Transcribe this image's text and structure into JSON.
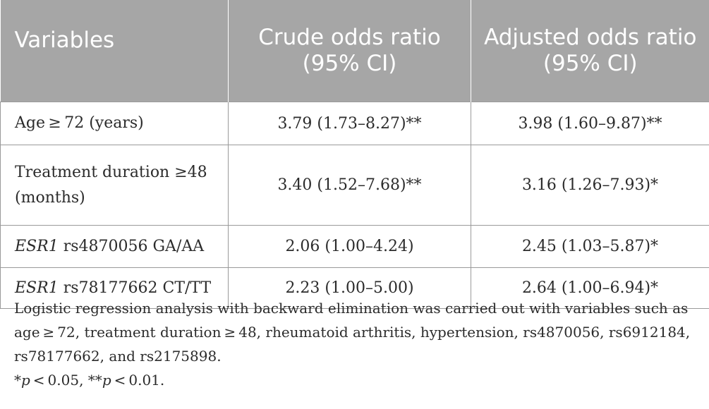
{
  "table": {
    "headers": [
      "Variables",
      "Crude odds ratio (95% CI)",
      "Adjusted odds ratio (95% CI)"
    ],
    "rows": [
      {
        "label": "Age ≥ 72 (years)",
        "crude": "3.79 (1.73–8.27)**",
        "adjusted": "3.98 (1.60–9.87)**"
      },
      {
        "label_line1": "Treatment duration ≥48",
        "label_line2": "(months)",
        "crude": "3.40 (1.52–7.68)**",
        "adjusted": "3.16 (1.26–7.93)*"
      },
      {
        "gene": "ESR1",
        "label": "rs4870056 GA/AA",
        "crude": "2.06 (1.00–4.24)",
        "adjusted": "2.45 (1.03–5.87)*"
      },
      {
        "gene": "ESR1",
        "label": "rs78177662 CT/TT",
        "crude": "2.23 (1.00–5.00)",
        "adjusted": "2.64 (1.00–6.94)*"
      }
    ]
  },
  "footnote": {
    "text": "Logistic regression analysis with backward elimination was carried out with variables such as age ≥ 72, treatment duration ≥ 48, rheumatoid arthritis, hypertension, rs4870056, rs6912184, rs78177662, and rs2175898.",
    "sig_star1": "*",
    "sig_p1": "p",
    "sig_rest1": " < 0.05, **",
    "sig_p2": "p",
    "sig_rest2": " < 0.01."
  }
}
